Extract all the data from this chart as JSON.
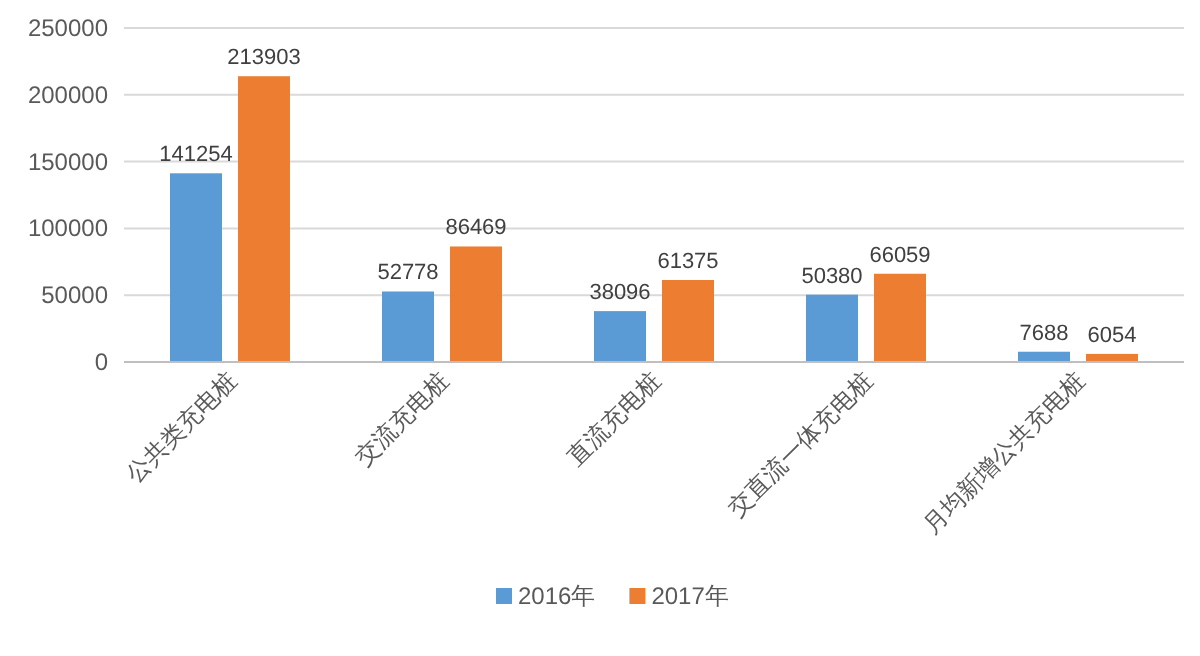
{
  "chart_data": {
    "type": "bar",
    "categories": [
      "公共类充电桩",
      "交流充电桩",
      "直流充电桩",
      "交直流一体充电桩",
      "月均新增公共充电桩"
    ],
    "series": [
      {
        "name": "2016年",
        "color": "#5b9bd5",
        "values": [
          141254,
          52778,
          38096,
          50380,
          7688
        ]
      },
      {
        "name": "2017年",
        "color": "#ed7d31",
        "values": [
          213903,
          86469,
          61375,
          66059,
          6054
        ]
      }
    ],
    "ylim": [
      0,
      250000
    ],
    "yticks": [
      0,
      50000,
      100000,
      150000,
      200000,
      250000
    ],
    "grid": "y",
    "legend": "bottom",
    "data_labels": true
  }
}
